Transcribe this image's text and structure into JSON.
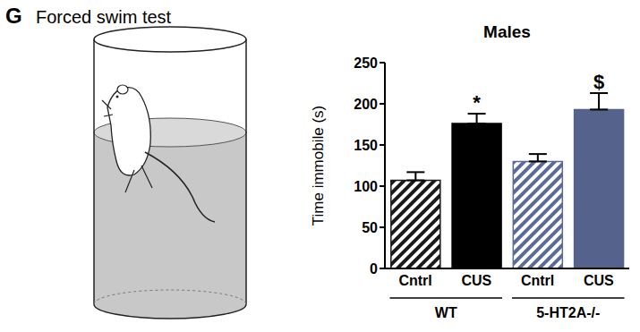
{
  "panel": {
    "label": "G",
    "title": "Forced swim test"
  },
  "chart_data": {
    "type": "bar",
    "title": "Males",
    "ylabel": "Time immobile (s)",
    "categories": [
      "Cntrl",
      "CUS",
      "Cntrl",
      "CUS"
    ],
    "groups": [
      "WT",
      "5-HT2A-/-"
    ],
    "values": [
      107,
      176,
      130,
      193
    ],
    "errors": [
      10,
      12,
      9,
      20
    ],
    "significance": [
      null,
      "*",
      null,
      "$"
    ],
    "colors": [
      "#1a1a1a",
      "#000000",
      "#5a6a99",
      "#55628c"
    ],
    "ylim": [
      0,
      250
    ],
    "yticks": [
      0,
      50,
      100,
      150,
      200,
      250
    ],
    "grid": false
  }
}
